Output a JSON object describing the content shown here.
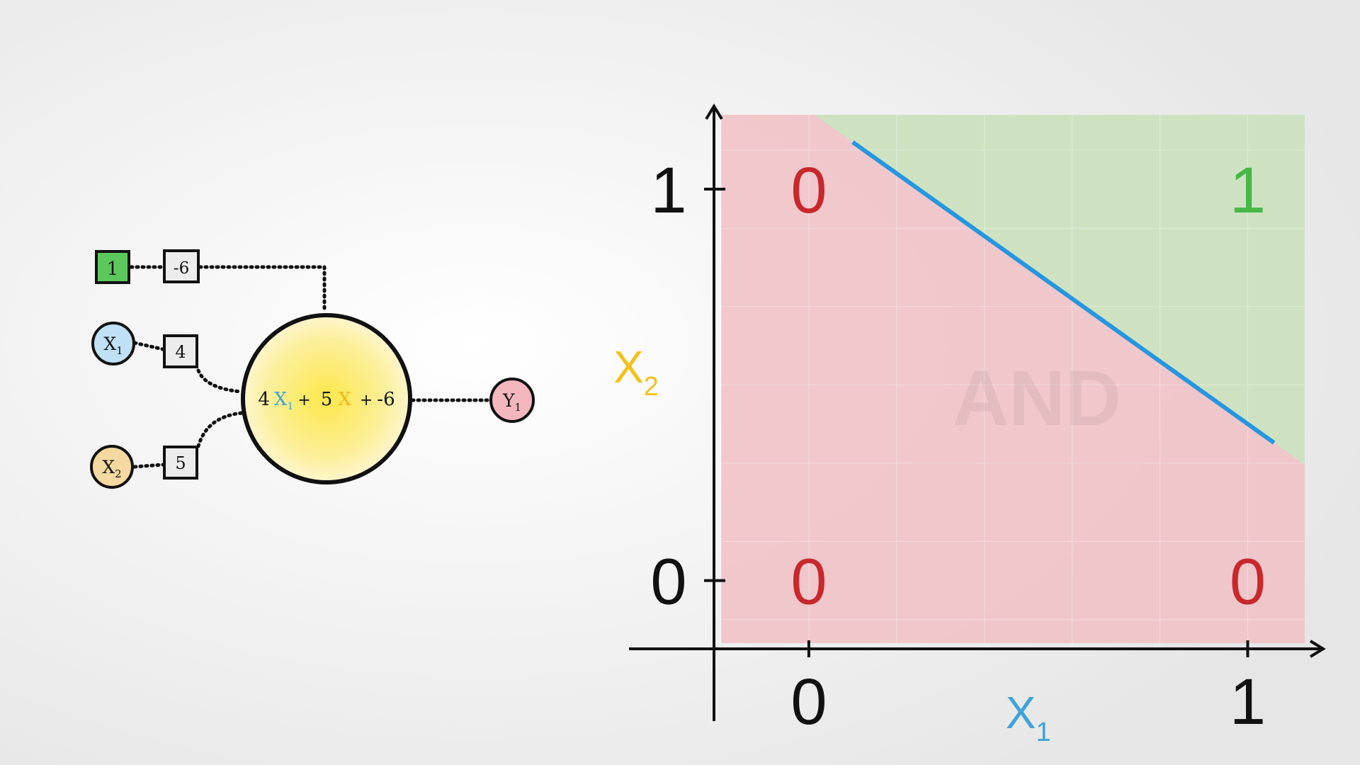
{
  "perceptron": {
    "bias_input": {
      "label": "1",
      "color": "#5cc85c"
    },
    "bias_weight": "-6",
    "input_x1": {
      "letter": "X",
      "sub": "1",
      "color": "#bfe0f5"
    },
    "weight_x1": "4",
    "input_x2": {
      "letter": "X",
      "sub": "2",
      "color": "#f6d9a0"
    },
    "weight_x2": "5",
    "neuron_formula": {
      "w1": "4",
      "x1_letter": "X",
      "x1_sub": "1",
      "plus1": "+",
      "w2": "5",
      "x2_letter": "X",
      "plus2": "+",
      "bias": "-6",
      "x1_color": "#3ea3d8",
      "x2_color": "#f2b61a"
    },
    "output_y1": {
      "letter": "Y",
      "sub": "1",
      "color": "#f5b7bd"
    }
  },
  "chart_data": {
    "type": "scatter",
    "title": "AND",
    "xlabel_letter": "X",
    "xlabel_sub": "1",
    "ylabel_letter": "X",
    "ylabel_sub": "2",
    "x_ticks": [
      "0",
      "1"
    ],
    "y_ticks": [
      "0",
      "1"
    ],
    "xlim": [
      -0.2,
      1.13
    ],
    "ylim": [
      -0.16,
      1.19
    ],
    "points": [
      {
        "x": 0,
        "y": 1,
        "label": "0"
      },
      {
        "x": 1,
        "y": 1,
        "label": "1"
      },
      {
        "x": 0,
        "y": 0,
        "label": "0"
      },
      {
        "x": 1,
        "y": 0,
        "label": "0"
      }
    ],
    "decision_boundary": {
      "w1": 4,
      "w2": 5,
      "bias": -6,
      "x_from": 0.1,
      "x_to": 1.06
    },
    "colors": {
      "class0": "#c8282c",
      "class1": "#46b846",
      "region0": "#f0c0c4",
      "region1": "#c8e6c0",
      "boundary": "#2596e0",
      "x1_label": "#3ea3d8",
      "x2_label": "#f2c21a"
    }
  }
}
